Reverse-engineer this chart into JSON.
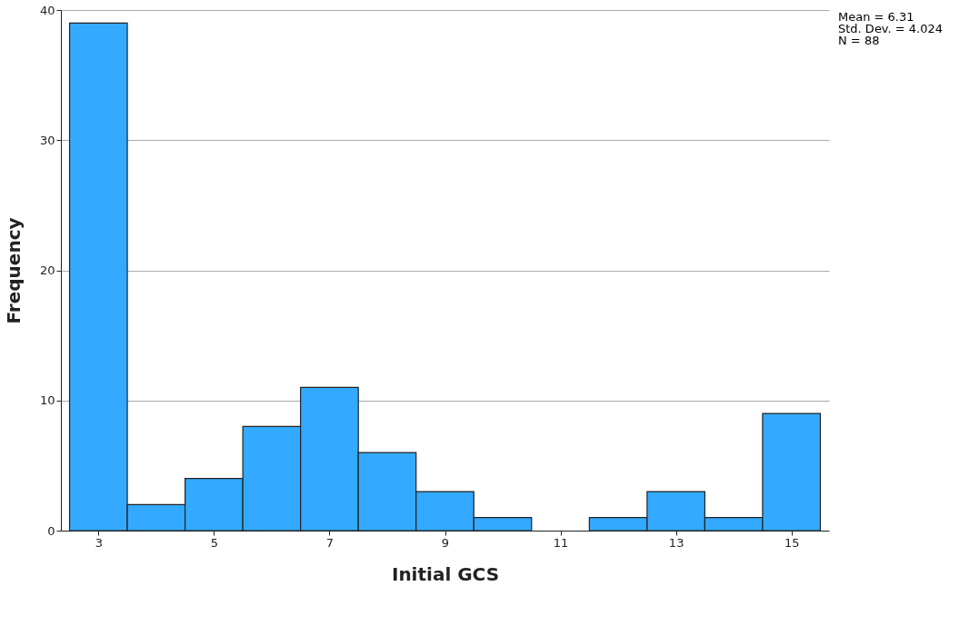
{
  "chart_data": {
    "type": "histogram",
    "xlabel": "Initial GCS",
    "ylabel": "Frequency",
    "bins": [
      2.5,
      3.5,
      4.5,
      5.5,
      6.5,
      7.5,
      8.5,
      9.5,
      10.5,
      11.5,
      12.5,
      13.5,
      14.5,
      15.5
    ],
    "values": [
      39,
      2,
      4,
      8,
      11,
      6,
      3,
      1,
      0,
      1,
      3,
      1,
      9
    ],
    "color": "#33aaff",
    "xlim": [
      2.35,
      15.65
    ],
    "xticks": [
      3,
      5,
      7,
      9,
      11,
      13,
      15
    ],
    "ylim": [
      0,
      40
    ],
    "yticks": [
      0,
      10,
      20,
      30,
      40
    ],
    "grid": "y",
    "annotations": [
      "Mean = 6.31",
      "Std. Dev. = 4.024",
      "N = 88"
    ]
  }
}
